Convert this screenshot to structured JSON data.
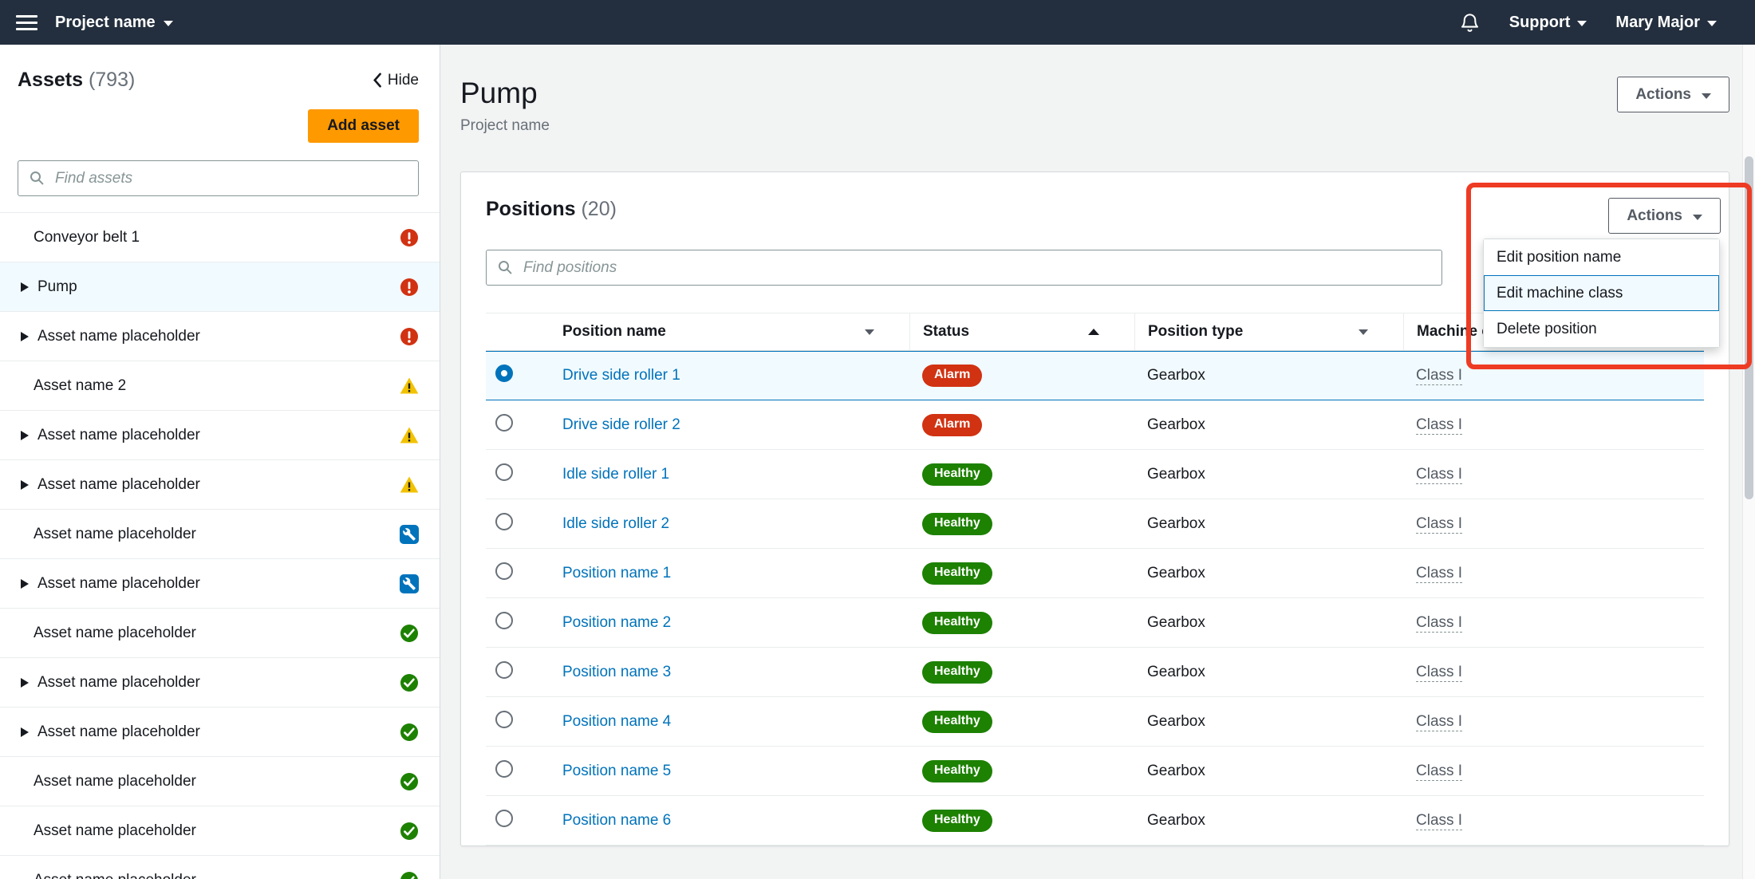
{
  "topbar": {
    "project_label": "Project name",
    "support_label": "Support",
    "user_label": "Mary Major"
  },
  "sidebar": {
    "title": "Assets",
    "count": "(793)",
    "hide_label": "Hide",
    "add_asset_label": "Add asset",
    "search_placeholder": "Find assets",
    "items": [
      {
        "label": "Conveyor belt 1",
        "expandable": false,
        "status": "alarm",
        "selected": false
      },
      {
        "label": "Pump",
        "expandable": true,
        "status": "alarm",
        "selected": true
      },
      {
        "label": "Asset name placeholder",
        "expandable": true,
        "status": "alarm",
        "selected": false
      },
      {
        "label": "Asset name 2",
        "expandable": false,
        "status": "warning",
        "selected": false
      },
      {
        "label": "Asset name placeholder",
        "expandable": true,
        "status": "warning",
        "selected": false
      },
      {
        "label": "Asset name placeholder",
        "expandable": true,
        "status": "warning",
        "selected": false
      },
      {
        "label": "Asset name placeholder",
        "expandable": false,
        "status": "maintenance",
        "selected": false
      },
      {
        "label": "Asset name placeholder",
        "expandable": true,
        "status": "maintenance",
        "selected": false
      },
      {
        "label": "Asset name placeholder",
        "expandable": false,
        "status": "healthy",
        "selected": false
      },
      {
        "label": "Asset name placeholder",
        "expandable": true,
        "status": "healthy",
        "selected": false
      },
      {
        "label": "Asset name placeholder",
        "expandable": true,
        "status": "healthy",
        "selected": false
      },
      {
        "label": "Asset name placeholder",
        "expandable": false,
        "status": "healthy",
        "selected": false
      },
      {
        "label": "Asset name placeholder",
        "expandable": false,
        "status": "healthy",
        "selected": false
      },
      {
        "label": "Asset name placeholder",
        "expandable": false,
        "status": "healthy",
        "selected": false
      }
    ]
  },
  "main": {
    "page_title": "Pump",
    "page_subtitle": "Project name",
    "page_actions_label": "Actions",
    "panel": {
      "title": "Positions",
      "count": "(20)",
      "search_placeholder": "Find positions",
      "actions_label": "Actions",
      "menu_items": [
        {
          "label": "Edit position name",
          "highlighted": false
        },
        {
          "label": "Edit machine class",
          "highlighted": true
        },
        {
          "label": "Delete position",
          "highlighted": false
        }
      ],
      "columns": [
        {
          "label": "Position name",
          "sort": "filter"
        },
        {
          "label": "Status",
          "sort": "asc"
        },
        {
          "label": "Position type",
          "sort": "filter"
        },
        {
          "label": "Machine class",
          "sort": "filter"
        }
      ],
      "rows": [
        {
          "name": "Drive side roller 1",
          "status": "Alarm",
          "type": "Gearbox",
          "machine_class": "Class I",
          "selected": true
        },
        {
          "name": "Drive side roller 2",
          "status": "Alarm",
          "type": "Gearbox",
          "machine_class": "Class I",
          "selected": false
        },
        {
          "name": "Idle side roller 1",
          "status": "Healthy",
          "type": "Gearbox",
          "machine_class": "Class I",
          "selected": false
        },
        {
          "name": "Idle side roller 2",
          "status": "Healthy",
          "type": "Gearbox",
          "machine_class": "Class I",
          "selected": false
        },
        {
          "name": "Position name 1",
          "status": "Healthy",
          "type": "Gearbox",
          "machine_class": "Class I",
          "selected": false
        },
        {
          "name": "Position name 2",
          "status": "Healthy",
          "type": "Gearbox",
          "machine_class": "Class I",
          "selected": false
        },
        {
          "name": "Position name 3",
          "status": "Healthy",
          "type": "Gearbox",
          "machine_class": "Class I",
          "selected": false
        },
        {
          "name": "Position name 4",
          "status": "Healthy",
          "type": "Gearbox",
          "machine_class": "Class I",
          "selected": false
        },
        {
          "name": "Position name 5",
          "status": "Healthy",
          "type": "Gearbox",
          "machine_class": "Class I",
          "selected": false
        },
        {
          "name": "Position name 6",
          "status": "Healthy",
          "type": "Gearbox",
          "machine_class": "Class I",
          "selected": false
        }
      ]
    }
  },
  "icons": {
    "menu": "hamburger-menu-icon",
    "notifications": "bell-icon",
    "search": "search-icon",
    "collapse": "chevron-left-icon",
    "dropdown": "chevron-down-icon",
    "expand": "expand-arrow-icon",
    "alarm": "alarm-status-icon",
    "warning": "warning-status-icon",
    "maintenance": "maintenance-status-icon",
    "healthy": "healthy-status-icon"
  },
  "colors": {
    "topbar_bg": "#232f3e",
    "primary_button_bg": "#ff9900",
    "link": "#0073bb",
    "alarm": "#d13212",
    "healthy": "#1d8102",
    "warning": "#f2c200",
    "maintenance": "#0073bb",
    "selected_row_bg": "#f1faff",
    "annotation": "#ee3b23"
  }
}
